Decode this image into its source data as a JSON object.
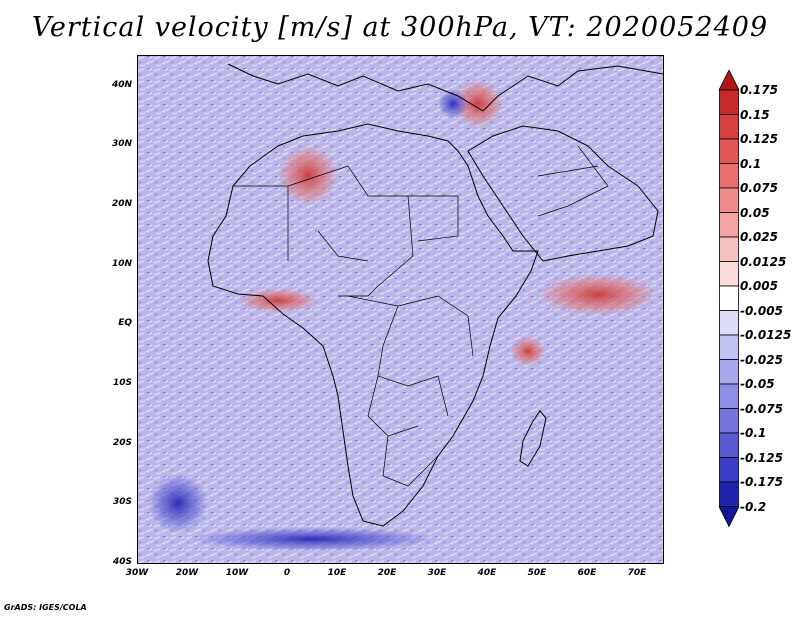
{
  "title": "Vertical velocity [m/s] at 300hPa, VT: 2020052409",
  "credit": "GrADS: IGES/COLA",
  "map": {
    "lon_range": [
      -30,
      75
    ],
    "lat_range": [
      -40,
      45
    ],
    "lat_labels": [
      "40N",
      "30N",
      "20N",
      "10N",
      "EQ",
      "10S",
      "20S",
      "30S",
      "40S"
    ],
    "lat_values": [
      40,
      30,
      20,
      10,
      0,
      -10,
      -20,
      -30,
      -40
    ],
    "lon_labels": [
      "30W",
      "20W",
      "10W",
      "0",
      "10E",
      "20E",
      "30E",
      "40E",
      "50E",
      "60E",
      "70E"
    ],
    "lon_values": [
      -30,
      -20,
      -10,
      0,
      10,
      20,
      30,
      40,
      50,
      60,
      70
    ],
    "field_background": "#b8b8ee",
    "features": {
      "ascent_zones": [
        {
          "name": "Arabian Sea band",
          "lon": 62,
          "lat": 5,
          "rx": 12,
          "ry": 3.5
        },
        {
          "name": "Indian Ocean cluster",
          "lon": 48,
          "lat": -4.5,
          "rx": 3.5,
          "ry": 2.5
        },
        {
          "name": "Red Sea / Arabia",
          "lon": 38,
          "lat": 37,
          "rx": 5,
          "ry": 4
        },
        {
          "name": "Sahara",
          "lon": 4,
          "lat": 25,
          "rx": 6,
          "ry": 5
        },
        {
          "name": "Gulf of Guinea",
          "lon": -2,
          "lat": 4,
          "rx": 8,
          "ry": 2
        }
      ],
      "descent_zones": [
        {
          "name": "Eastern Mediterranean",
          "lon": 33,
          "lat": 37,
          "rx": 3,
          "ry": 2.5
        },
        {
          "name": "South Atlantic swirl",
          "lon": -22,
          "lat": -30,
          "rx": 6,
          "ry": 5
        },
        {
          "name": "Southern Ocean band",
          "lon": 5,
          "lat": -36,
          "rx": 25,
          "ry": 2
        }
      ]
    }
  },
  "colorbar": {
    "labels": [
      "0.175",
      "0.15",
      "0.125",
      "0.1",
      "0.075",
      "0.05",
      "0.025",
      "0.0125",
      "0.005",
      "-0.005",
      "-0.0125",
      "-0.025",
      "-0.05",
      "-0.075",
      "-0.1",
      "-0.125",
      "-0.175",
      "-0.2"
    ],
    "colors": [
      "#b01818",
      "#c82a2a",
      "#d84040",
      "#e25858",
      "#ea7070",
      "#ef8a8a",
      "#f3a4a4",
      "#f7c0c0",
      "#fadada",
      "#ffffff",
      "#dcdcf8",
      "#c2c2f2",
      "#a8a8ec",
      "#8e8ee4",
      "#7474dc",
      "#5a5ad2",
      "#3c3cc4",
      "#2222b0",
      "#14149a"
    ]
  }
}
